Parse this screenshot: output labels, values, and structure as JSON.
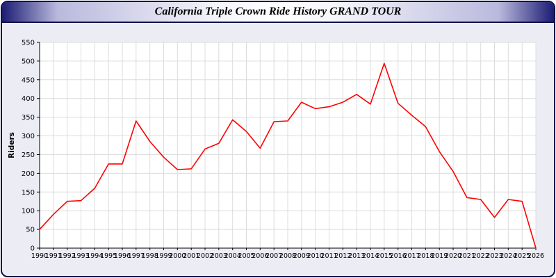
{
  "title": "California Triple Crown Ride History GRAND TOUR",
  "colors": {
    "frame_border": "#10104a",
    "panel_background": "#ececf5",
    "plot_background": "#ffffff",
    "gridline": "#dcdcdc",
    "axis": "#000000",
    "series": "#ff0000"
  },
  "chart_data": {
    "type": "line",
    "title": "California Triple Crown Ride History GRAND TOUR",
    "xlabel": "",
    "ylabel": "Riders",
    "ylim": [
      0,
      550
    ],
    "ytick_step": 50,
    "grid": true,
    "legend": "none",
    "line_color": "#ff0000",
    "x": [
      1990,
      1991,
      1992,
      1993,
      1994,
      1995,
      1996,
      1997,
      1998,
      1999,
      2000,
      2001,
      2002,
      2003,
      2004,
      2005,
      2006,
      2007,
      2008,
      2009,
      2010,
      2011,
      2012,
      2013,
      2014,
      2015,
      2016,
      2017,
      2018,
      2019,
      2020,
      2021,
      2022,
      2023,
      2024,
      2025,
      2026
    ],
    "series": [
      {
        "name": "Riders",
        "values": [
          50,
          90,
          125,
          127,
          160,
          225,
          225,
          340,
          285,
          243,
          210,
          212,
          265,
          280,
          343,
          312,
          267,
          338,
          340,
          390,
          373,
          378,
          390,
          411,
          385,
          494,
          387,
          355,
          325,
          258,
          205,
          135,
          130,
          82,
          130,
          125,
          0
        ]
      }
    ]
  }
}
